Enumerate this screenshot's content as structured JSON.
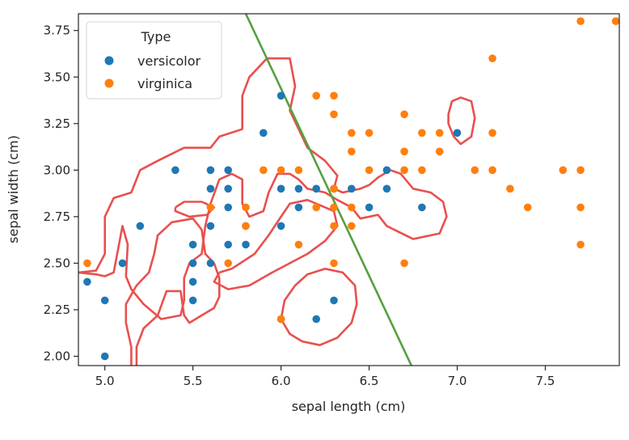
{
  "chart_data": {
    "type": "scatter",
    "xlabel": "sepal length (cm)",
    "ylabel": "sepal width (cm)",
    "xlim": [
      4.85,
      7.92
    ],
    "ylim": [
      1.95,
      3.84
    ],
    "xticks": [
      5.0,
      5.5,
      6.0,
      6.5,
      7.0,
      7.5
    ],
    "xtick_labels": [
      "5.0",
      "5.5",
      "6.0",
      "6.5",
      "7.0",
      "7.5"
    ],
    "yticks": [
      2.0,
      2.25,
      2.5,
      2.75,
      3.0,
      3.25,
      3.5,
      3.75
    ],
    "ytick_labels": [
      "2.00",
      "2.25",
      "2.50",
      "2.75",
      "3.00",
      "3.25",
      "3.50",
      "3.75"
    ],
    "grid": false,
    "legend": {
      "title": "Type",
      "placement": "top-left",
      "entries": [
        {
          "label": "versicolor",
          "color": "#1f77b4"
        },
        {
          "label": "virginica",
          "color": "#ff7f0e"
        }
      ]
    },
    "series": [
      {
        "name": "versicolor",
        "color": "#1f77b4",
        "points": [
          [
            4.9,
            2.4
          ],
          [
            5.0,
            2.0
          ],
          [
            5.0,
            2.3
          ],
          [
            5.1,
            2.5
          ],
          [
            5.2,
            2.7
          ],
          [
            5.4,
            3.0
          ],
          [
            5.5,
            2.3
          ],
          [
            5.5,
            2.4
          ],
          [
            5.5,
            2.5
          ],
          [
            5.5,
            2.6
          ],
          [
            5.6,
            2.5
          ],
          [
            5.6,
            2.7
          ],
          [
            5.6,
            2.9
          ],
          [
            5.6,
            3.0
          ],
          [
            5.7,
            2.6
          ],
          [
            5.7,
            2.8
          ],
          [
            5.7,
            2.9
          ],
          [
            5.7,
            3.0
          ],
          [
            5.8,
            2.6
          ],
          [
            5.8,
            2.7
          ],
          [
            5.9,
            3.2
          ],
          [
            6.0,
            2.7
          ],
          [
            6.0,
            2.9
          ],
          [
            6.0,
            3.4
          ],
          [
            6.0,
            2.2
          ],
          [
            6.1,
            2.8
          ],
          [
            6.1,
            2.9
          ],
          [
            6.2,
            2.2
          ],
          [
            6.2,
            2.9
          ],
          [
            6.3,
            2.3
          ],
          [
            6.3,
            2.9
          ],
          [
            6.4,
            2.9
          ],
          [
            6.5,
            2.8
          ],
          [
            6.6,
            2.9
          ],
          [
            6.6,
            3.0
          ],
          [
            6.8,
            2.8
          ],
          [
            7.0,
            3.2
          ]
        ]
      },
      {
        "name": "virginica",
        "color": "#ff7f0e",
        "points": [
          [
            4.9,
            2.5
          ],
          [
            5.6,
            2.8
          ],
          [
            5.7,
            2.5
          ],
          [
            5.8,
            2.7
          ],
          [
            5.8,
            2.8
          ],
          [
            5.9,
            3.0
          ],
          [
            6.0,
            2.2
          ],
          [
            6.0,
            3.0
          ],
          [
            6.1,
            2.6
          ],
          [
            6.1,
            3.0
          ],
          [
            6.2,
            2.8
          ],
          [
            6.2,
            3.4
          ],
          [
            6.3,
            2.5
          ],
          [
            6.3,
            2.7
          ],
          [
            6.3,
            2.8
          ],
          [
            6.3,
            2.9
          ],
          [
            6.3,
            3.3
          ],
          [
            6.3,
            3.4
          ],
          [
            6.4,
            2.7
          ],
          [
            6.4,
            2.8
          ],
          [
            6.4,
            3.1
          ],
          [
            6.4,
            3.2
          ],
          [
            6.5,
            3.0
          ],
          [
            6.5,
            3.2
          ],
          [
            6.7,
            2.5
          ],
          [
            6.7,
            3.0
          ],
          [
            6.7,
            3.1
          ],
          [
            6.7,
            3.3
          ],
          [
            6.8,
            3.0
          ],
          [
            6.8,
            3.2
          ],
          [
            6.9,
            3.1
          ],
          [
            6.9,
            3.2
          ],
          [
            7.1,
            3.0
          ],
          [
            7.2,
            3.0
          ],
          [
            7.2,
            3.2
          ],
          [
            7.2,
            3.6
          ],
          [
            7.3,
            2.9
          ],
          [
            7.4,
            2.8
          ],
          [
            7.6,
            3.0
          ],
          [
            7.7,
            2.6
          ],
          [
            7.7,
            2.8
          ],
          [
            7.7,
            3.0
          ],
          [
            7.7,
            3.8
          ],
          [
            7.9,
            3.8
          ]
        ]
      }
    ],
    "decision_line": {
      "color": "#55a040",
      "points": [
        [
          5.8,
          3.84
        ],
        [
          6.74,
          1.95
        ]
      ]
    },
    "contours": {
      "color": "#e8504e",
      "paths": [
        [
          [
            4.85,
            2.45
          ],
          [
            4.95,
            2.46
          ],
          [
            5.0,
            2.55
          ],
          [
            5.0,
            2.75
          ],
          [
            5.05,
            2.85
          ],
          [
            5.15,
            2.88
          ],
          [
            5.2,
            3.0
          ],
          [
            5.3,
            3.05
          ],
          [
            5.45,
            3.12
          ],
          [
            5.6,
            3.12
          ],
          [
            5.65,
            3.18
          ],
          [
            5.78,
            3.22
          ],
          [
            5.78,
            3.4
          ],
          [
            5.82,
            3.5
          ],
          [
            5.92,
            3.6
          ],
          [
            6.05,
            3.6
          ],
          [
            6.08,
            3.45
          ],
          [
            6.05,
            3.32
          ],
          [
            6.1,
            3.22
          ],
          [
            6.15,
            3.12
          ],
          [
            6.25,
            3.05
          ],
          [
            6.32,
            2.97
          ],
          [
            6.3,
            2.9
          ],
          [
            6.35,
            2.88
          ],
          [
            6.45,
            2.9
          ],
          [
            6.5,
            2.92
          ],
          [
            6.55,
            2.96
          ],
          [
            6.62,
            3.0
          ],
          [
            6.68,
            2.98
          ],
          [
            6.75,
            2.9
          ],
          [
            6.85,
            2.88
          ],
          [
            6.92,
            2.83
          ],
          [
            6.94,
            2.75
          ],
          [
            6.9,
            2.66
          ],
          [
            6.75,
            2.63
          ],
          [
            6.6,
            2.7
          ],
          [
            6.55,
            2.76
          ],
          [
            6.45,
            2.74
          ],
          [
            6.4,
            2.8
          ],
          [
            6.32,
            2.84
          ],
          [
            6.25,
            2.88
          ],
          [
            6.15,
            2.9
          ],
          [
            6.1,
            2.95
          ],
          [
            6.05,
            2.98
          ],
          [
            5.98,
            2.98
          ],
          [
            5.93,
            2.88
          ],
          [
            5.9,
            2.78
          ],
          [
            5.82,
            2.75
          ],
          [
            5.78,
            2.82
          ],
          [
            5.78,
            2.95
          ],
          [
            5.72,
            2.98
          ],
          [
            5.65,
            2.95
          ],
          [
            5.6,
            2.82
          ],
          [
            5.57,
            2.7
          ],
          [
            5.55,
            2.55
          ],
          [
            5.48,
            2.5
          ],
          [
            5.45,
            2.42
          ],
          [
            5.45,
            2.3
          ],
          [
            5.43,
            2.22
          ],
          [
            5.32,
            2.2
          ],
          [
            5.22,
            2.28
          ],
          [
            5.15,
            2.36
          ],
          [
            5.12,
            2.43
          ],
          [
            5.13,
            2.6
          ],
          [
            5.1,
            2.7
          ],
          [
            5.05,
            2.45
          ],
          [
            5.0,
            2.43
          ],
          [
            4.95,
            2.44
          ],
          [
            4.85,
            2.45
          ]
        ],
        [
          [
            5.15,
            1.95
          ],
          [
            5.15,
            2.05
          ],
          [
            5.12,
            2.18
          ],
          [
            5.12,
            2.28
          ],
          [
            5.18,
            2.38
          ],
          [
            5.25,
            2.45
          ],
          [
            5.28,
            2.55
          ],
          [
            5.3,
            2.65
          ],
          [
            5.38,
            2.72
          ],
          [
            5.5,
            2.74
          ],
          [
            5.55,
            2.68
          ],
          [
            5.57,
            2.55
          ],
          [
            5.62,
            2.5
          ],
          [
            5.65,
            2.42
          ],
          [
            5.65,
            2.32
          ],
          [
            5.62,
            2.26
          ],
          [
            5.55,
            2.22
          ],
          [
            5.48,
            2.18
          ],
          [
            5.45,
            2.22
          ],
          [
            5.43,
            2.35
          ],
          [
            5.35,
            2.35
          ],
          [
            5.3,
            2.22
          ],
          [
            5.22,
            2.15
          ],
          [
            5.18,
            2.05
          ],
          [
            5.18,
            1.95
          ]
        ],
        [
          [
            5.65,
            2.45
          ],
          [
            5.72,
            2.47
          ],
          [
            5.85,
            2.55
          ],
          [
            5.93,
            2.65
          ],
          [
            6.0,
            2.75
          ],
          [
            6.05,
            2.82
          ],
          [
            6.15,
            2.84
          ],
          [
            6.3,
            2.78
          ],
          [
            6.32,
            2.7
          ],
          [
            6.25,
            2.62
          ],
          [
            6.15,
            2.55
          ],
          [
            6.05,
            2.5
          ],
          [
            5.95,
            2.45
          ],
          [
            5.82,
            2.38
          ],
          [
            5.7,
            2.36
          ],
          [
            5.62,
            2.4
          ],
          [
            5.65,
            2.45
          ]
        ],
        [
          [
            5.4,
            2.8
          ],
          [
            5.45,
            2.83
          ],
          [
            5.55,
            2.83
          ],
          [
            5.62,
            2.8
          ],
          [
            5.58,
            2.76
          ],
          [
            5.48,
            2.75
          ],
          [
            5.4,
            2.78
          ],
          [
            5.4,
            2.8
          ]
        ],
        [
          [
            6.95,
            3.3
          ],
          [
            6.97,
            3.37
          ],
          [
            7.02,
            3.39
          ],
          [
            7.08,
            3.37
          ],
          [
            7.1,
            3.28
          ],
          [
            7.08,
            3.18
          ],
          [
            7.02,
            3.14
          ],
          [
            6.98,
            3.18
          ],
          [
            6.95,
            3.25
          ],
          [
            6.95,
            3.3
          ]
        ],
        [
          [
            6.0,
            2.2
          ],
          [
            6.02,
            2.3
          ],
          [
            6.08,
            2.38
          ],
          [
            6.15,
            2.44
          ],
          [
            6.25,
            2.47
          ],
          [
            6.35,
            2.45
          ],
          [
            6.42,
            2.38
          ],
          [
            6.43,
            2.28
          ],
          [
            6.4,
            2.18
          ],
          [
            6.32,
            2.1
          ],
          [
            6.22,
            2.06
          ],
          [
            6.12,
            2.08
          ],
          [
            6.05,
            2.12
          ],
          [
            6.0,
            2.2
          ]
        ]
      ]
    }
  }
}
